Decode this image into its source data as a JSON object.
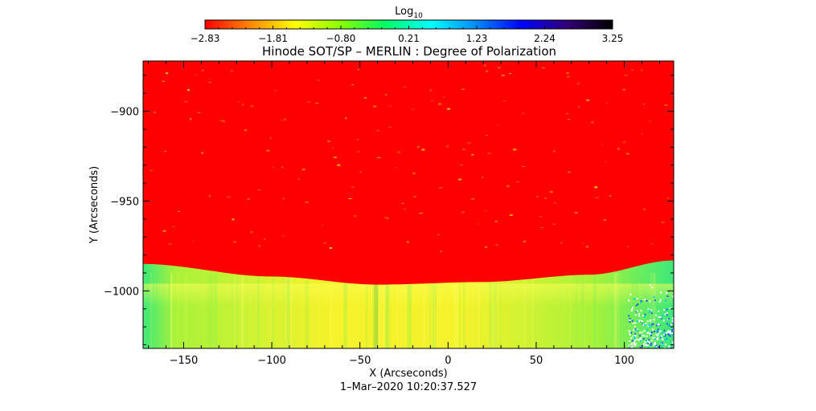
{
  "chart_data": {
    "type": "heatmap",
    "title": "Hinode SOT/SP – MERLIN : Degree of Polarization",
    "xlabel": "X (Arcseconds)",
    "ylabel": "Y (Arcseconds)",
    "xlim": [
      -173,
      128
    ],
    "ylim": [
      -1032,
      -872
    ],
    "x_ticks": [
      -150,
      -100,
      -50,
      0,
      50,
      100
    ],
    "x_tick_labels": [
      "−150",
      "−100",
      "−50",
      "0",
      "50",
      "100"
    ],
    "y_ticks": [
      -900,
      -950,
      -1000
    ],
    "y_tick_labels": [
      "−900",
      "−950",
      "−1000"
    ],
    "footer": "1–Mar–2020 10:20:37.527",
    "limb": {
      "description": "solar limb boundary (Y at given X)",
      "points": [
        [
          -173,
          -985
        ],
        [
          -100,
          -992
        ],
        [
          -40,
          -996.5
        ],
        [
          20,
          -995
        ],
        [
          80,
          -991
        ],
        [
          128,
          -983
        ]
      ]
    },
    "colorbar": {
      "label_base": "Log",
      "label_sub": "10",
      "ticks": [
        "−2.83",
        "−1.81",
        "−0.80",
        "0.21",
        "1.23",
        "2.24",
        "3.25"
      ],
      "range": [
        -2.83,
        3.25
      ],
      "colors": [
        "#ff0000",
        "#ff8800",
        "#ffff00",
        "#88ff00",
        "#00ff66",
        "#00ffff",
        "#0088ff",
        "#0000ff",
        "#330077",
        "#000000"
      ]
    },
    "regions": [
      {
        "name": "disk",
        "color": "#ff0000"
      },
      {
        "name": "off-limb",
        "colors": [
          "#f4f22a",
          "#a8f23a",
          "#3ce87a"
        ]
      }
    ]
  }
}
